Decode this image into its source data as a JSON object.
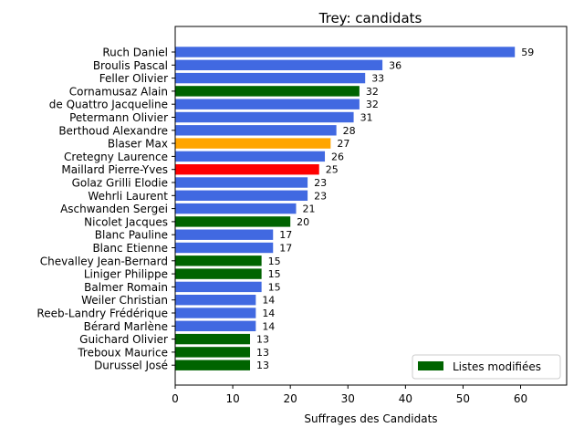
{
  "chart_data": {
    "type": "bar",
    "orientation": "horizontal",
    "title": "Trey: candidats",
    "xlabel": "Suffrages des Candidats",
    "ylabel": "",
    "xlim": [
      0,
      68
    ],
    "xticks": [
      "0",
      "10",
      "20",
      "30",
      "40",
      "50",
      "60"
    ],
    "grid": false,
    "legend": {
      "placement": "lower-right",
      "entries": [
        {
          "label": "Listes modifiées",
          "color": "#006400"
        }
      ]
    },
    "colors": {
      "default": "#4169e1",
      "modified": "#006400",
      "orange": "#ffa500",
      "red": "#ff0000"
    },
    "categories": [
      "Ruch Daniel",
      "Broulis Pascal",
      "Feller Olivier",
      "Cornamusaz Alain",
      "de Quattro Jacqueline",
      "Petermann Olivier",
      "Berthoud Alexandre",
      "Blaser Max",
      "Cretegny Laurence",
      "Maillard Pierre-Yves",
      "Golaz Grilli Elodie",
      "Wehrli Laurent",
      "Aschwanden Sergei",
      "Nicolet Jacques",
      "Blanc Pauline",
      "Blanc Etienne",
      "Chevalley Jean-Bernard",
      "Liniger Philippe",
      "Balmer Romain",
      "Weiler Christian",
      "Reeb-Landry Frédérique",
      "Bérard Marlène",
      "Guichard Olivier",
      "Treboux Maurice",
      "Durussel José"
    ],
    "values": [
      59,
      36,
      33,
      32,
      32,
      31,
      28,
      27,
      26,
      25,
      23,
      23,
      21,
      20,
      17,
      17,
      15,
      15,
      15,
      14,
      14,
      14,
      13,
      13,
      13
    ],
    "value_labels": [
      "59",
      "36",
      "33",
      "32",
      "32",
      "31",
      "28",
      "27",
      "26",
      "25",
      "23",
      "23",
      "21",
      "20",
      "17",
      "17",
      "15",
      "15",
      "15",
      "14",
      "14",
      "14",
      "13",
      "13",
      "13"
    ],
    "bar_colors": [
      "#4169e1",
      "#4169e1",
      "#4169e1",
      "#006400",
      "#4169e1",
      "#4169e1",
      "#4169e1",
      "#ffa500",
      "#4169e1",
      "#ff0000",
      "#4169e1",
      "#4169e1",
      "#4169e1",
      "#006400",
      "#4169e1",
      "#4169e1",
      "#006400",
      "#006400",
      "#4169e1",
      "#4169e1",
      "#4169e1",
      "#4169e1",
      "#006400",
      "#006400",
      "#006400"
    ]
  }
}
